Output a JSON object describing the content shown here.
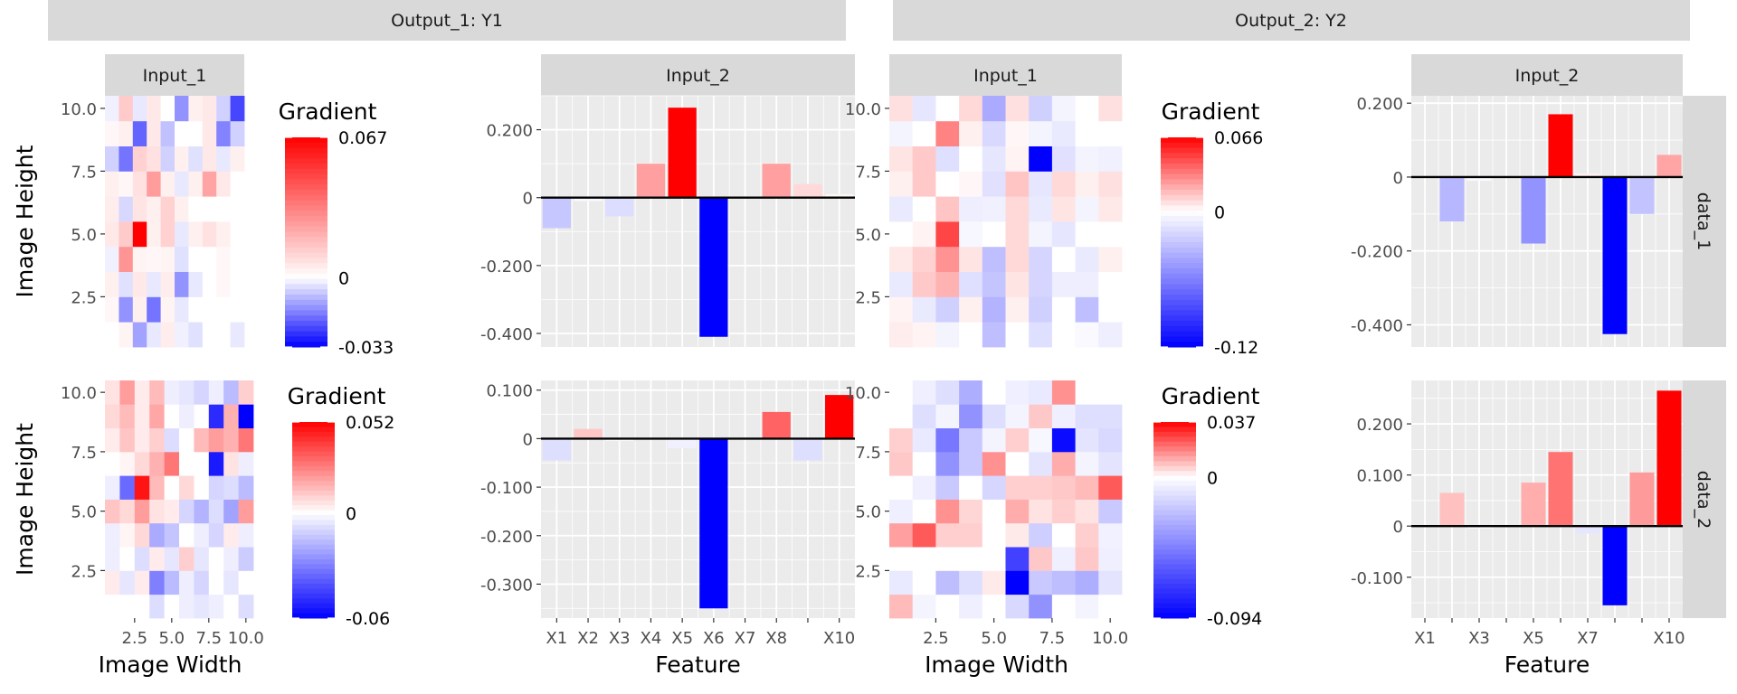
{
  "strips": {
    "output_1": "Output_1: Y1",
    "output_2": "Output_2: Y2",
    "input_1": "Input_1",
    "input_2": "Input_2",
    "row_1": "data_1",
    "row_2": "data_2"
  },
  "axis_labels": {
    "image_height": "Image Height",
    "image_width": "Image Width",
    "feature": "Feature"
  },
  "legend_title": "Gradient",
  "colors": {
    "low": "#0000FF",
    "mid": "#FFFFFF",
    "high": "#FF0000",
    "panel_bg": "#EBEBEB",
    "strip_bg": "#D9D9D9"
  },
  "chart_data": [
    {
      "type": "heatmap",
      "output": "Output_1: Y1",
      "input": "Input_1",
      "row": "data_1",
      "x_ticks": [
        "2.5",
        "5.0",
        "7.5",
        "10.0"
      ],
      "y_ticks": [
        "2.5",
        "5.0",
        "7.5",
        "10.0"
      ],
      "legend": {
        "max": 0.067,
        "min": -0.033,
        "max_label": "0.067",
        "mid_label": "0",
        "min_label": "-0.033"
      },
      "z": [
        [
          0.0,
          0.003,
          -0.012,
          -0.003,
          0.005,
          -0.002,
          -0.004,
          0.0,
          0.0,
          -0.003
        ],
        [
          0.002,
          -0.014,
          0.004,
          -0.018,
          0.003,
          -0.003,
          0.0,
          0.0,
          0.0,
          0.0
        ],
        [
          0.004,
          -0.004,
          0.006,
          -0.003,
          0.005,
          -0.014,
          -0.003,
          0.0,
          0.002,
          0.0
        ],
        [
          -0.002,
          0.028,
          0.003,
          0.002,
          0.003,
          -0.004,
          0.0,
          0.0,
          0.002,
          0.0
        ],
        [
          0.006,
          0.014,
          0.067,
          0.004,
          0.012,
          -0.003,
          0.004,
          0.008,
          0.004,
          0.0
        ],
        [
          0.005,
          -0.005,
          0.007,
          0.004,
          0.012,
          0.004,
          0.0,
          0.0,
          0.0,
          0.0
        ],
        [
          0.004,
          0.002,
          0.008,
          0.026,
          0.004,
          -0.003,
          0.004,
          0.024,
          0.006,
          0.0
        ],
        [
          -0.006,
          -0.018,
          0.012,
          0.008,
          -0.006,
          0.004,
          -0.004,
          0.006,
          -0.003,
          0.004
        ],
        [
          0.002,
          0.004,
          -0.02,
          0.006,
          -0.008,
          0.0,
          0.0,
          0.006,
          -0.016,
          -0.006
        ],
        [
          -0.002,
          0.014,
          -0.003,
          0.006,
          0.0,
          -0.014,
          0.004,
          0.006,
          -0.006,
          -0.024
        ]
      ]
    },
    {
      "type": "bar",
      "output": "Output_1: Y1",
      "input": "Input_2",
      "row": "data_1",
      "categories": [
        "X1",
        "X2",
        "X3",
        "X4",
        "X5",
        "X6",
        "X7",
        "X8",
        "X9",
        "X10"
      ],
      "values": [
        -0.09,
        -0.01,
        -0.055,
        0.1,
        0.265,
        -0.41,
        0.0,
        0.1,
        0.04,
        0.01
      ],
      "y_ticks": [
        0.2,
        0,
        -0.2,
        -0.4
      ],
      "y_tick_labels": [
        "0.200",
        "0",
        "-0.200",
        "-0.400"
      ],
      "ylim": [
        -0.44,
        0.3
      ],
      "color_range": [
        -0.41,
        0.265
      ]
    },
    {
      "type": "heatmap",
      "output": "Output_2: Y2",
      "input": "Input_1",
      "row": "data_1",
      "x_ticks": [
        "2.5",
        "5.0",
        "7.5",
        "10.0"
      ],
      "y_ticks": [
        "2.5",
        "5.0",
        "7.5",
        "10.0"
      ],
      "legend": {
        "max": 0.066,
        "min": -0.12,
        "max_label": "0.066",
        "mid_label": "0",
        "min_label": "-0.12"
      },
      "z": [
        [
          0.005,
          0.003,
          -0.005,
          0.0,
          -0.03,
          0.0,
          -0.015,
          0.0,
          -0.003,
          -0.008
        ],
        [
          0.003,
          -0.01,
          -0.022,
          0.004,
          -0.036,
          0.004,
          -0.022,
          0.0,
          -0.03,
          0.0
        ],
        [
          -0.01,
          0.014,
          0.02,
          -0.015,
          -0.028,
          0.007,
          -0.02,
          -0.008,
          -0.008,
          0.0
        ],
        [
          0.006,
          0.012,
          0.028,
          0.007,
          -0.03,
          0.01,
          -0.02,
          0.0,
          -0.01,
          0.004
        ],
        [
          0.0,
          0.003,
          0.048,
          -0.004,
          0.0,
          0.01,
          -0.005,
          -0.012,
          0.0,
          0.0
        ],
        [
          -0.01,
          0.0,
          0.015,
          -0.008,
          -0.007,
          0.01,
          -0.01,
          0.007,
          -0.005,
          0.006
        ],
        [
          0.004,
          0.014,
          0.0,
          0.002,
          -0.014,
          0.015,
          -0.012,
          0.01,
          0.004,
          0.008
        ],
        [
          0.007,
          0.014,
          -0.015,
          0.0,
          -0.012,
          0.003,
          -0.12,
          -0.014,
          -0.005,
          -0.007
        ],
        [
          -0.005,
          0.0,
          0.032,
          0.004,
          -0.018,
          0.002,
          -0.005,
          -0.01,
          0.0,
          0.0
        ],
        [
          0.008,
          -0.012,
          0.0,
          0.01,
          -0.04,
          0.008,
          -0.022,
          -0.005,
          0.0,
          0.008
        ]
      ]
    },
    {
      "type": "bar",
      "output": "Output_2: Y2",
      "input": "Input_2",
      "row": "data_1",
      "categories": [
        "X1",
        "X2",
        "X3",
        "X4",
        "X5",
        "X6",
        "X7",
        "X8",
        "X9",
        "X10"
      ],
      "values": [
        0.0,
        -0.12,
        -0.01,
        0.0,
        -0.18,
        0.17,
        0.01,
        -0.425,
        -0.1,
        0.06
      ],
      "y_ticks": [
        0.2,
        0,
        -0.2,
        -0.4
      ],
      "y_tick_labels": [
        "0.200",
        "0",
        "-0.200",
        "-0.400"
      ],
      "ylim": [
        -0.46,
        0.22
      ],
      "color_range": [
        -0.425,
        0.17
      ]
    },
    {
      "type": "heatmap",
      "output": "Output_1: Y1",
      "input": "Input_1",
      "row": "data_2",
      "x_ticks": [
        "2.5",
        "5.0",
        "7.5",
        "10.0"
      ],
      "y_ticks": [
        "2.5",
        "5.0",
        "7.5",
        "10.0"
      ],
      "legend": {
        "max": 0.052,
        "min": -0.06,
        "max_label": "0.052",
        "mid_label": "0",
        "min_label": "-0.06"
      },
      "z": [
        [
          0.0,
          0.0,
          0.0,
          -0.008,
          0.0,
          -0.004,
          -0.006,
          -0.004,
          0.0,
          -0.008
        ],
        [
          0.004,
          -0.006,
          0.004,
          -0.03,
          -0.016,
          -0.004,
          -0.01,
          0.0,
          -0.006,
          0.0
        ],
        [
          -0.004,
          0.0,
          -0.008,
          0.004,
          -0.006,
          0.01,
          -0.006,
          0.0,
          -0.004,
          -0.012
        ],
        [
          -0.004,
          0.002,
          0.008,
          -0.02,
          -0.014,
          0.0,
          -0.004,
          -0.01,
          0.004,
          -0.004
        ],
        [
          0.012,
          0.008,
          0.02,
          0.006,
          0.004,
          -0.01,
          -0.018,
          -0.008,
          -0.022,
          0.02
        ],
        [
          -0.004,
          -0.035,
          0.048,
          0.014,
          0.0,
          0.008,
          0.0,
          -0.01,
          -0.008,
          -0.016
        ],
        [
          0.0,
          0.002,
          0.008,
          0.016,
          0.028,
          0.0,
          0.0,
          -0.054,
          0.006,
          -0.004
        ],
        [
          0.004,
          0.012,
          0.004,
          0.01,
          -0.008,
          0.0,
          0.014,
          0.02,
          0.016,
          0.028
        ],
        [
          0.008,
          0.014,
          0.004,
          0.018,
          0.0,
          -0.004,
          0.0,
          -0.05,
          0.016,
          -0.06
        ],
        [
          0.006,
          0.02,
          0.004,
          0.014,
          -0.004,
          -0.006,
          -0.01,
          -0.004,
          -0.016,
          0.01
        ]
      ]
    },
    {
      "type": "bar",
      "output": "Output_1: Y1",
      "input": "Input_2",
      "row": "data_2",
      "categories": [
        "X1",
        "X2",
        "X3",
        "X4",
        "X5",
        "X6",
        "X7",
        "X8",
        "X9",
        "X10"
      ],
      "tick_labels": [
        "X1",
        "X2",
        "X3",
        "X4",
        "X5",
        "X6",
        "X7",
        "X8",
        "",
        "X10"
      ],
      "values": [
        -0.045,
        0.02,
        -0.005,
        0.0,
        -0.02,
        -0.35,
        0.0,
        0.055,
        -0.045,
        0.09
      ],
      "y_ticks": [
        0.1,
        0,
        -0.1,
        -0.2,
        -0.3
      ],
      "y_tick_labels": [
        "0.100",
        "0",
        "-0.100",
        "-0.200",
        "-0.300"
      ],
      "ylim": [
        -0.37,
        0.12
      ],
      "color_range": [
        -0.35,
        0.09
      ]
    },
    {
      "type": "heatmap",
      "output": "Output_2: Y2",
      "input": "Input_1",
      "row": "data_2",
      "x_ticks": [
        "2.5",
        "5.0",
        "7.5",
        "10.0"
      ],
      "y_ticks": [
        "2.5",
        "5.0",
        "7.5",
        "10.0"
      ],
      "legend": {
        "max": 0.037,
        "min": -0.094,
        "max_label": "0.037",
        "mid_label": "0",
        "min_label": "-0.094"
      },
      "z": [
        [
          0.01,
          -0.004,
          0.0,
          -0.006,
          0.0,
          -0.014,
          -0.04,
          0.0,
          -0.004,
          0.0
        ],
        [
          -0.008,
          0.0,
          -0.024,
          -0.012,
          0.003,
          -0.094,
          -0.02,
          -0.024,
          -0.03,
          -0.01
        ],
        [
          0.0,
          0.0,
          0.0,
          0.0,
          0.0,
          -0.07,
          0.008,
          -0.006,
          0.008,
          -0.006
        ],
        [
          0.014,
          0.024,
          0.007,
          0.007,
          0.0,
          0.003,
          -0.018,
          0.0,
          0.007,
          -0.005
        ],
        [
          -0.006,
          0.0,
          0.016,
          0.006,
          0.0,
          0.012,
          0.004,
          0.007,
          0.004,
          -0.02
        ],
        [
          0.0,
          -0.006,
          -0.02,
          0.0,
          -0.015,
          0.007,
          0.007,
          0.008,
          0.01,
          0.024
        ],
        [
          0.008,
          0.0,
          -0.04,
          -0.02,
          0.016,
          0.0,
          -0.01,
          0.012,
          -0.004,
          -0.01
        ],
        [
          0.007,
          -0.008,
          -0.05,
          -0.02,
          -0.004,
          0.007,
          -0.003,
          -0.09,
          -0.01,
          -0.014
        ],
        [
          0.0,
          -0.012,
          -0.004,
          -0.04,
          -0.012,
          -0.004,
          0.008,
          -0.006,
          -0.012,
          -0.012
        ],
        [
          0.0,
          -0.006,
          -0.012,
          -0.03,
          0.0,
          -0.006,
          -0.008,
          0.016,
          0.0,
          0.0
        ]
      ]
    },
    {
      "type": "bar",
      "output": "Output_2: Y2",
      "input": "Input_2",
      "row": "data_2",
      "categories": [
        "X1",
        "X2",
        "X3",
        "X4",
        "X5",
        "X6",
        "X7",
        "X8",
        "X9",
        "X10"
      ],
      "tick_labels": [
        "X1",
        "",
        "X3",
        "",
        "X5",
        "",
        "X7",
        "",
        "",
        "X10"
      ],
      "values": [
        0.0,
        0.065,
        -0.005,
        0.0,
        0.085,
        0.145,
        -0.015,
        -0.155,
        0.105,
        0.265
      ],
      "y_ticks": [
        0.2,
        0.1,
        0,
        -0.1
      ],
      "y_tick_labels": [
        "0.200",
        "0.100",
        "0",
        "-0.100"
      ],
      "ylim": [
        -0.18,
        0.285
      ],
      "color_range": [
        -0.155,
        0.265
      ]
    }
  ]
}
